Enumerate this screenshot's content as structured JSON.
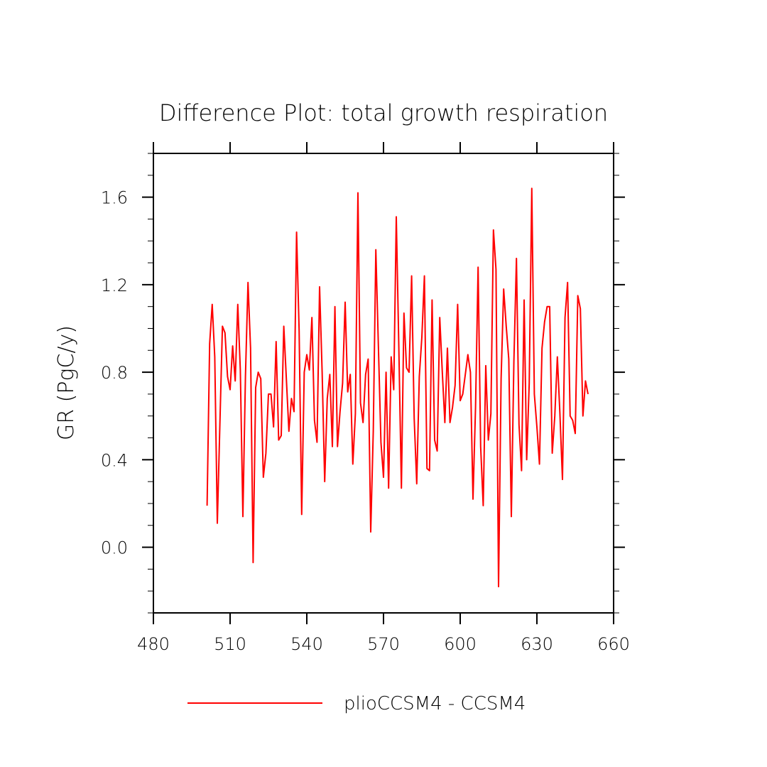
{
  "chart_data": {
    "type": "line",
    "title": "Difference Plot: total growth respiration",
    "xlabel": "",
    "ylabel": "GR  (PgC/y)",
    "xlim": [
      480,
      660
    ],
    "ylim": [
      -0.3,
      1.8
    ],
    "xticks": [
      "480",
      "510",
      "540",
      "570",
      "600",
      "630",
      "660"
    ],
    "yticks": [
      "0.0",
      "0.4",
      "0.8",
      "1.2",
      "1.6"
    ],
    "grid": false,
    "legend_position": "bottom",
    "series": [
      {
        "name": "plioCCSM4 - CCSM4",
        "color": "#ff0000",
        "x": [
          501,
          502,
          503,
          504,
          505,
          506,
          507,
          508,
          509,
          510,
          511,
          512,
          513,
          514,
          515,
          516,
          517,
          518,
          519,
          520,
          521,
          522,
          523,
          524,
          525,
          526,
          527,
          528,
          529,
          530,
          531,
          532,
          533,
          534,
          535,
          536,
          537,
          538,
          539,
          540,
          541,
          542,
          543,
          544,
          545,
          546,
          547,
          548,
          549,
          550,
          551,
          552,
          553,
          554,
          555,
          556,
          557,
          558,
          559,
          560,
          561,
          562,
          563,
          564,
          565,
          566,
          567,
          568,
          569,
          570,
          571,
          572,
          573,
          574,
          575,
          576,
          577,
          578,
          579,
          580,
          581,
          582,
          583,
          584,
          585,
          586,
          587,
          588,
          589,
          590,
          591,
          592,
          593,
          594,
          595,
          596,
          597,
          598,
          599,
          600,
          601,
          602,
          603,
          604,
          605,
          606,
          607,
          608,
          609,
          610,
          611,
          612,
          613,
          614,
          615,
          616,
          617,
          618,
          619,
          620,
          621,
          622,
          623,
          624,
          625,
          626,
          627,
          628,
          629,
          630,
          631,
          632,
          633,
          634,
          635,
          636,
          637,
          638,
          639,
          640,
          641,
          642,
          643,
          644,
          645,
          646,
          647,
          648,
          649,
          650
        ],
        "y": [
          0.19,
          0.93,
          1.11,
          0.87,
          0.11,
          0.56,
          1.01,
          0.98,
          0.78,
          0.72,
          0.92,
          0.76,
          1.11,
          0.81,
          0.14,
          0.78,
          1.21,
          0.91,
          -0.07,
          0.73,
          0.8,
          0.77,
          0.32,
          0.43,
          0.7,
          0.7,
          0.55,
          0.94,
          0.49,
          0.51,
          1.01,
          0.77,
          0.53,
          0.68,
          0.62,
          1.44,
          0.99,
          0.15,
          0.8,
          0.88,
          0.81,
          1.05,
          0.58,
          0.48,
          1.19,
          0.8,
          0.3,
          0.68,
          0.79,
          0.46,
          1.1,
          0.46,
          0.62,
          0.75,
          1.12,
          0.71,
          0.79,
          0.38,
          0.61,
          1.62,
          0.66,
          0.57,
          0.79,
          0.86,
          0.07,
          0.53,
          1.36,
          0.92,
          0.48,
          0.32,
          0.8,
          0.27,
          0.87,
          0.72,
          1.51,
          0.91,
          0.27,
          1.07,
          0.82,
          0.8,
          1.24,
          0.59,
          0.29,
          0.78,
          0.96,
          1.24,
          0.36,
          0.35,
          1.13,
          0.49,
          0.44,
          1.05,
          0.8,
          0.57,
          0.91,
          0.57,
          0.64,
          0.74,
          1.11,
          0.67,
          0.7,
          0.79,
          0.88,
          0.8,
          0.22,
          0.64,
          1.28,
          0.46,
          0.19,
          0.83,
          0.49,
          0.61,
          1.45,
          1.27,
          -0.18,
          0.77,
          1.18,
          1.01,
          0.86,
          0.14,
          0.85,
          1.32,
          0.56,
          0.35,
          1.13,
          0.4,
          0.75,
          1.64,
          0.7,
          0.55,
          0.38,
          0.91,
          1.03,
          1.1,
          1.1,
          0.43,
          0.6,
          0.87,
          0.61,
          0.31,
          1.05,
          1.21,
          0.6,
          0.58,
          0.52,
          1.15,
          1.09,
          0.6,
          0.76,
          0.7
        ]
      }
    ]
  }
}
